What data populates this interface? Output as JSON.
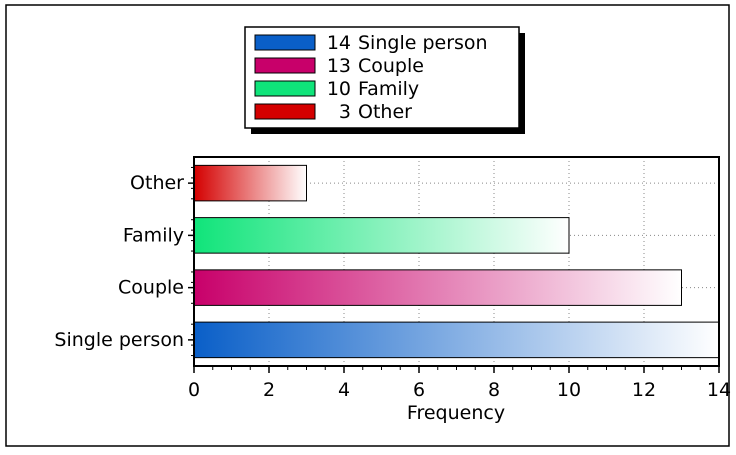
{
  "chart_data": {
    "type": "bar",
    "orientation": "horizontal",
    "categories": [
      "Single person",
      "Couple",
      "Family",
      "Other"
    ],
    "values": [
      14,
      13,
      10,
      3
    ],
    "colors": [
      "#0a5fc8",
      "#c8006a",
      "#10e47a",
      "#d40000"
    ],
    "legend": {
      "placement": "top-center",
      "entries": [
        {
          "count": "14",
          "label": "Single person",
          "color": "#0a5fc8"
        },
        {
          "count": "13",
          "label": "Couple",
          "color": "#c8006a"
        },
        {
          "count": "10",
          "label": "Family",
          "color": "#10e47a"
        },
        {
          "count": "3",
          "label": "Other",
          "color": "#d40000"
        }
      ]
    },
    "xlabel": "Frequency",
    "ylabel": "",
    "xlim": [
      0,
      14
    ],
    "xticks": [
      "0",
      "2",
      "4",
      "6",
      "8",
      "10",
      "12",
      "14"
    ],
    "grid": true
  }
}
